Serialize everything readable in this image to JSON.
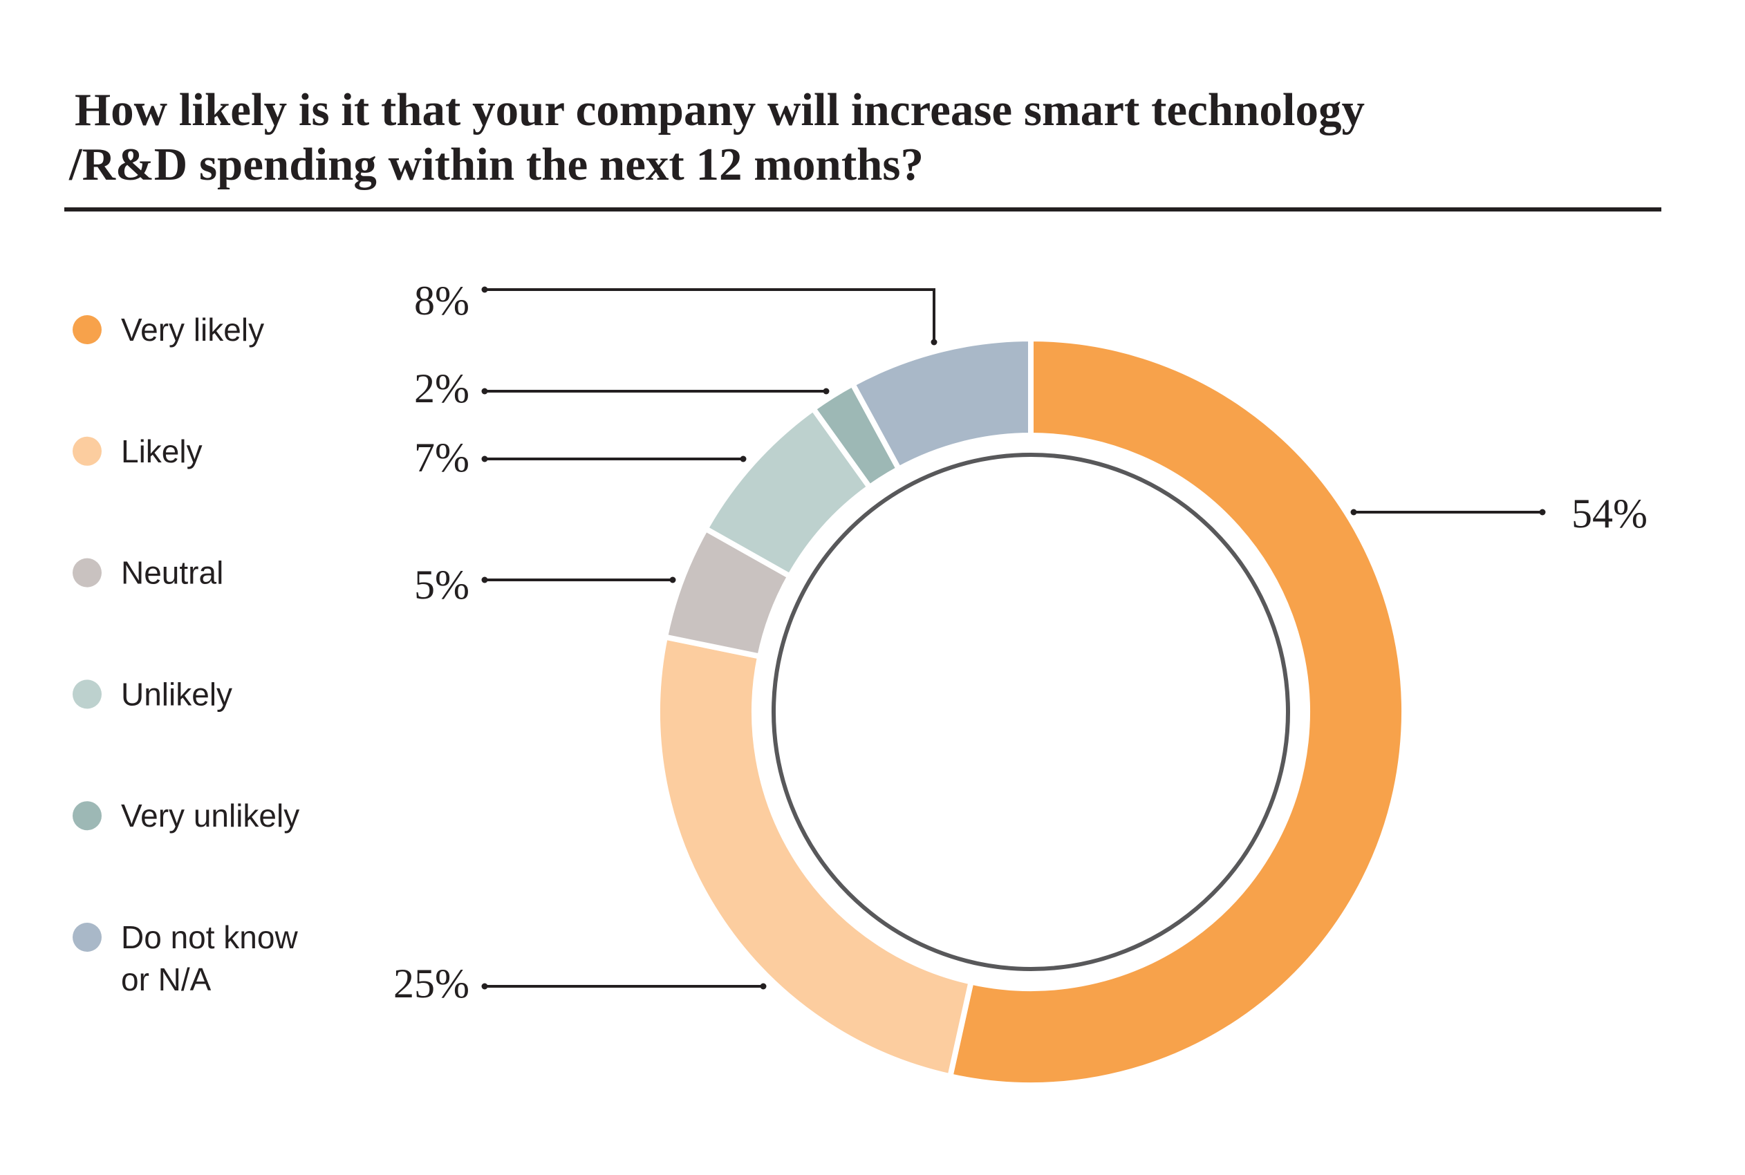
{
  "chart_data": {
    "type": "pie",
    "variant": "donut",
    "title": "How likely is it that your company will increase smart technology /R&D spending within the next 12 months?",
    "title_lines": [
      "How likely is it that your company will increase smart technology",
      "/R&D spending within the next 12 months?"
    ],
    "legend_position": "left",
    "direction": "clockwise-from-top",
    "series": [
      {
        "name": "Very likely",
        "legend_lines": [
          "Very likely"
        ],
        "value": 54,
        "label": "54%",
        "color": "#F7A24B"
      },
      {
        "name": "Likely",
        "legend_lines": [
          "Likely"
        ],
        "value": 25,
        "label": "25%",
        "color": "#FCCD9F"
      },
      {
        "name": "Neutral",
        "legend_lines": [
          "Neutral"
        ],
        "value": 5,
        "label": "5%",
        "color": "#C9C2C0"
      },
      {
        "name": "Unlikely",
        "legend_lines": [
          "Unlikely"
        ],
        "value": 7,
        "label": "7%",
        "color": "#BDD1CE"
      },
      {
        "name": "Very unlikely",
        "legend_lines": [
          "Very unlikely"
        ],
        "value": 2,
        "label": "2%",
        "color": "#9DB8B5"
      },
      {
        "name": "Do not know or N/A",
        "legend_lines": [
          "Do not know",
          "or N/A"
        ],
        "value": 8,
        "label": "8%",
        "color": "#A9B8C8"
      }
    ]
  }
}
